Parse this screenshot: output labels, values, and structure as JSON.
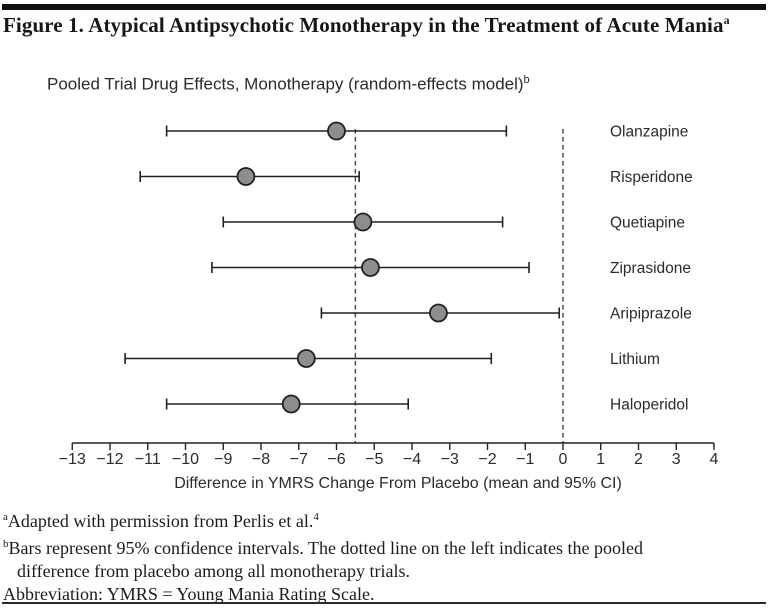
{
  "header": {
    "title": "Figure 1. Atypical Antipsychotic Monotherapy in the Treatment of Acute Mania",
    "title_note": "a"
  },
  "chart_data": {
    "type": "forest",
    "title": "Pooled Trial Drug Effects, Monotherapy (random-effects model)",
    "title_note": "b",
    "xlabel": "Difference in YMRS Change From Placebo (mean and 95% CI)",
    "xlim": [
      -13,
      4
    ],
    "x_ticks": [
      -13,
      -12,
      -11,
      -10,
      -9,
      -8,
      -7,
      -6,
      -5,
      -4,
      -3,
      -2,
      -1,
      0,
      1,
      2,
      3,
      4
    ],
    "x_tick_labels": [
      "−13",
      "−12",
      "−11",
      "−10",
      "−9",
      "−8",
      "−7",
      "−6",
      "−5",
      "−4",
      "−3",
      "−2",
      "−1",
      "0",
      "1",
      "2",
      "3",
      "4"
    ],
    "series": [
      {
        "name": "Olanzapine",
        "mean": -6.0,
        "ci_low": -10.5,
        "ci_high": -1.5
      },
      {
        "name": "Risperidone",
        "mean": -8.4,
        "ci_low": -11.2,
        "ci_high": -5.4
      },
      {
        "name": "Quetiapine",
        "mean": -5.3,
        "ci_low": -9.0,
        "ci_high": -1.6
      },
      {
        "name": "Ziprasidone",
        "mean": -5.1,
        "ci_low": -9.3,
        "ci_high": -0.9
      },
      {
        "name": "Aripiprazole",
        "mean": -3.3,
        "ci_low": -6.4,
        "ci_high": -0.1
      },
      {
        "name": "Lithium",
        "mean": -6.8,
        "ci_low": -11.6,
        "ci_high": -1.9
      },
      {
        "name": "Haloperidol",
        "mean": -7.2,
        "ci_low": -10.5,
        "ci_high": -4.1
      }
    ],
    "reference_lines": [
      {
        "value": -5.5,
        "style": "dashed",
        "meaning": "pooled difference from placebo among all monotherapy trials"
      },
      {
        "value": 0,
        "style": "dashed",
        "meaning": "no difference from placebo"
      }
    ],
    "grid": false,
    "legend": "none",
    "marker_color": "#8d8d8d",
    "line_color": "#231f20",
    "reference_line_color": "#454545"
  },
  "footnotes": {
    "a": {
      "marker": "a",
      "text": "Adapted with permission from Perlis et al.",
      "citation": "4"
    },
    "b": {
      "marker": "b",
      "line1": "Bars represent 95% confidence intervals. The dotted line on the left indicates the pooled",
      "line2": "difference from placebo among all monotherapy trials."
    },
    "abbreviation": "Abbreviation: YMRS = Young Mania Rating Scale."
  }
}
